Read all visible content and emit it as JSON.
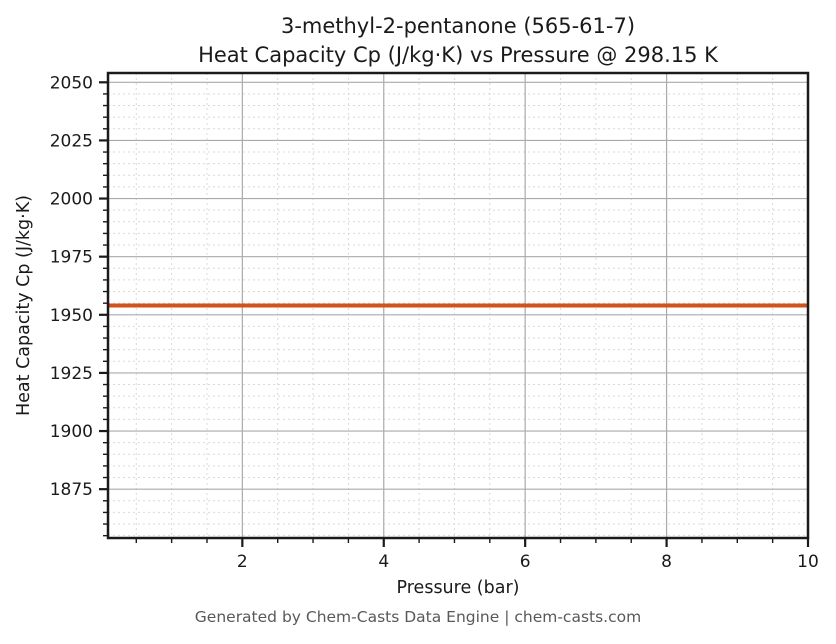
{
  "footer": "Generated by Chem-Casts Data Engine | chem-casts.com",
  "colors": {
    "line": "#d2521e",
    "grid_major": "#aaaaaa",
    "grid_minor": "#d9d9d9",
    "spine": "#1a1a1a",
    "tick": "#1a1a1a",
    "text": "#1a1a1a",
    "footer_text": "#595959",
    "background": "#ffffff"
  },
  "chart_data": {
    "type": "line",
    "title_line1": "3-methyl-2-pentanone (565-61-7)",
    "title_line2": "Heat Capacity Cp (J/kg·K) vs Pressure @ 298.15 K",
    "xlabel": "Pressure (bar)",
    "ylabel": "Heat Capacity Cp (J/kg·K)",
    "xlim": [
      0.1,
      10
    ],
    "ylim": [
      1854,
      2054
    ],
    "x_major_ticks": [
      2,
      4,
      6,
      8,
      10
    ],
    "x_minor_step": 0.5,
    "y_major_ticks": [
      1875,
      1900,
      1925,
      1950,
      1975,
      2000,
      2025,
      2050
    ],
    "y_minor_step": 5,
    "grid": true,
    "grid_major_style": "solid",
    "grid_minor_style": "dashed",
    "legend": "none",
    "series": [
      {
        "name": "Heat Capacity Cp",
        "x": [
          0.1,
          1,
          2,
          3,
          4,
          5,
          6,
          7,
          8,
          9,
          10
        ],
        "y": [
          1954,
          1954,
          1954,
          1954,
          1954,
          1954,
          1954,
          1954,
          1954,
          1954,
          1954
        ],
        "color": "#d2521e",
        "line_width": 4
      }
    ]
  }
}
